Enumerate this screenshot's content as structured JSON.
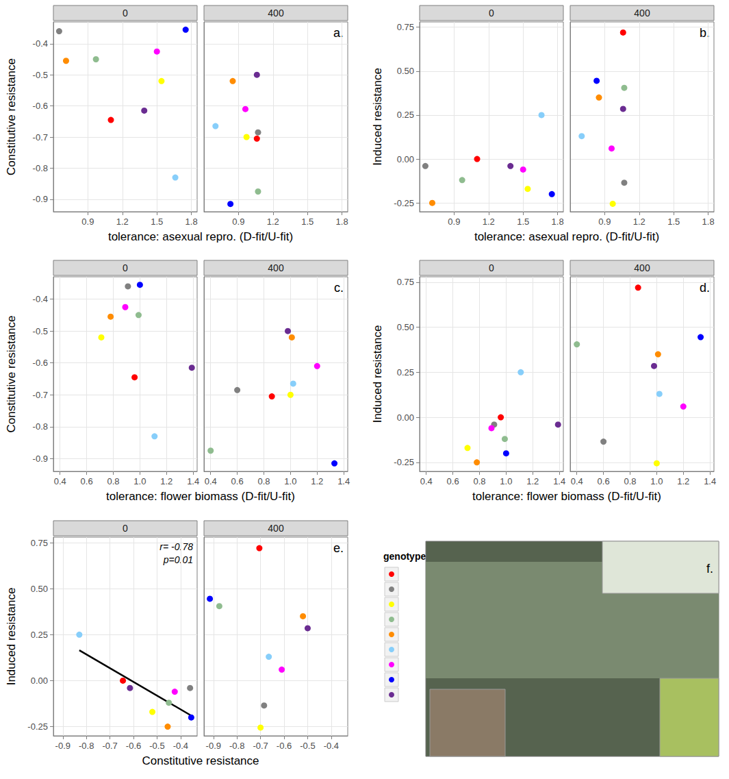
{
  "chart_data": [
    {
      "type": "scatter",
      "label": "a.",
      "x_label": "tolerance: asexual repro. (D-fit/U-fit)",
      "y_label": "Constitutive resistance",
      "xlim": [
        0.6,
        1.85
      ],
      "xticks": [
        0.9,
        1.2,
        1.5,
        1.8
      ],
      "ylim": [
        -0.94,
        -0.33
      ],
      "yticks": [
        -0.9,
        -0.8,
        -0.7,
        -0.6,
        -0.5,
        -0.4
      ],
      "grid": true,
      "marker": "circle",
      "series": [
        {
          "name": "0",
          "colors": [
            "#ff0000",
            "#808080",
            "#ffff00",
            "#8fbc8f",
            "#ff8c00",
            "#87cefa",
            "#ff00ff",
            "#0000ff",
            "#6a2c91"
          ],
          "x": [
            1.1,
            0.65,
            1.54,
            0.97,
            0.71,
            1.66,
            1.5,
            1.75,
            1.39
          ],
          "y": [
            -0.645,
            -0.36,
            -0.52,
            -0.45,
            -0.455,
            -0.83,
            -0.425,
            -0.355,
            -0.615
          ]
        },
        {
          "name": "400",
          "colors": [
            "#ff0000",
            "#808080",
            "#ffff00",
            "#8fbc8f",
            "#ff8c00",
            "#87cefa",
            "#ff00ff",
            "#0000ff",
            "#6a2c91"
          ],
          "x": [
            1.06,
            1.07,
            0.97,
            1.07,
            0.85,
            0.7,
            0.96,
            0.83,
            1.06
          ],
          "y": [
            -0.705,
            -0.685,
            -0.7,
            -0.875,
            -0.52,
            -0.665,
            -0.61,
            -0.915,
            -0.5
          ]
        }
      ]
    },
    {
      "type": "scatter",
      "label": "b.",
      "x_label": "tolerance: asexual repro. (D-fit/U-fit)",
      "y_label": "Induced resistance",
      "xlim": [
        0.6,
        1.85
      ],
      "xticks": [
        0.9,
        1.2,
        1.5,
        1.8
      ],
      "ylim": [
        -0.3,
        0.78
      ],
      "yticks": [
        -0.25,
        {
          "value": 0,
          "label": "0.00"
        },
        0.25,
        {
          "value": 0.5,
          "label": "0.50"
        },
        0.75
      ],
      "grid": true,
      "marker": "circle",
      "series": [
        {
          "name": "0",
          "colors": [
            "#ff0000",
            "#808080",
            "#ffff00",
            "#8fbc8f",
            "#ff8c00",
            "#87cefa",
            "#ff00ff",
            "#0000ff",
            "#6a2c91"
          ],
          "x": [
            1.1,
            0.65,
            1.54,
            0.97,
            0.71,
            1.66,
            1.5,
            1.75,
            1.39
          ],
          "y": [
            0.0,
            -0.04,
            -0.17,
            -0.12,
            -0.25,
            0.25,
            -0.06,
            -0.2,
            -0.04
          ]
        },
        {
          "name": "400",
          "colors": [
            "#ff0000",
            "#808080",
            "#ffff00",
            "#8fbc8f",
            "#ff8c00",
            "#87cefa",
            "#ff00ff",
            "#0000ff",
            "#6a2c91"
          ],
          "x": [
            1.06,
            1.07,
            0.97,
            1.07,
            0.85,
            0.7,
            0.96,
            0.83,
            1.06
          ],
          "y": [
            0.72,
            -0.135,
            -0.255,
            0.405,
            0.35,
            0.13,
            0.06,
            0.445,
            0.285
          ]
        }
      ]
    },
    {
      "type": "scatter",
      "label": "c.",
      "x_label": "tolerance: flower biomass (D-fit/U-fit)",
      "y_label": "Constitutive resistance",
      "xlim": [
        0.35,
        1.43
      ],
      "xticks": [
        0.4,
        0.6,
        0.8,
        {
          "value": 1,
          "label": "1.0"
        },
        1.2,
        1.4
      ],
      "ylim": [
        -0.94,
        -0.33
      ],
      "yticks": [
        -0.9,
        -0.8,
        -0.7,
        -0.6,
        -0.5,
        -0.4
      ],
      "grid": true,
      "marker": "circle",
      "series": [
        {
          "name": "0",
          "colors": [
            "#ff0000",
            "#808080",
            "#ffff00",
            "#8fbc8f",
            "#ff8c00",
            "#87cefa",
            "#ff00ff",
            "#0000ff",
            "#6a2c91"
          ],
          "x": [
            0.96,
            0.91,
            0.71,
            0.99,
            0.78,
            1.11,
            0.89,
            1.0,
            1.39
          ],
          "y": [
            -0.645,
            -0.36,
            -0.52,
            -0.45,
            -0.455,
            -0.83,
            -0.425,
            -0.355,
            -0.615
          ]
        },
        {
          "name": "400",
          "colors": [
            "#ff0000",
            "#808080",
            "#ffff00",
            "#8fbc8f",
            "#ff8c00",
            "#87cefa",
            "#ff00ff",
            "#0000ff",
            "#6a2c91"
          ],
          "x": [
            0.86,
            0.6,
            1.0,
            0.4,
            1.01,
            1.02,
            1.2,
            1.33,
            0.98
          ],
          "y": [
            -0.705,
            -0.685,
            -0.7,
            -0.875,
            -0.52,
            -0.665,
            -0.61,
            -0.915,
            -0.5
          ]
        }
      ]
    },
    {
      "type": "scatter",
      "label": "d.",
      "x_label": "tolerance: flower biomass (D-fit/U-fit)",
      "y_label": "Induced resistance",
      "xlim": [
        0.35,
        1.43
      ],
      "xticks": [
        0.4,
        0.6,
        0.8,
        {
          "value": 1,
          "label": "1.0"
        },
        1.2,
        1.4
      ],
      "ylim": [
        -0.3,
        0.78
      ],
      "yticks": [
        -0.25,
        {
          "value": 0,
          "label": "0.00"
        },
        0.25,
        {
          "value": 0.5,
          "label": "0.50"
        },
        0.75
      ],
      "grid": true,
      "marker": "circle",
      "series": [
        {
          "name": "0",
          "colors": [
            "#ff0000",
            "#808080",
            "#ffff00",
            "#8fbc8f",
            "#ff8c00",
            "#87cefa",
            "#ff00ff",
            "#0000ff",
            "#6a2c91"
          ],
          "x": [
            0.96,
            0.91,
            0.71,
            0.99,
            0.78,
            1.11,
            0.89,
            1.0,
            1.39
          ],
          "y": [
            0.0,
            -0.04,
            -0.17,
            -0.12,
            -0.25,
            0.25,
            -0.06,
            -0.2,
            -0.04
          ]
        },
        {
          "name": "400",
          "colors": [
            "#ff0000",
            "#808080",
            "#ffff00",
            "#8fbc8f",
            "#ff8c00",
            "#87cefa",
            "#ff00ff",
            "#0000ff",
            "#6a2c91"
          ],
          "x": [
            0.86,
            0.6,
            1.0,
            0.4,
            1.01,
            1.02,
            1.2,
            1.33,
            0.98
          ],
          "y": [
            0.72,
            -0.135,
            -0.255,
            0.405,
            0.35,
            0.13,
            0.06,
            0.445,
            0.285
          ]
        }
      ]
    },
    {
      "type": "scatter",
      "label": "e.",
      "x_label": "Constitutive resistance",
      "y_label": "Induced resistance",
      "xlim": [
        -0.94,
        -0.33
      ],
      "xticks": [
        -0.9,
        -0.8,
        -0.7,
        -0.6,
        -0.5,
        -0.4
      ],
      "ylim": [
        -0.3,
        0.78
      ],
      "yticks": [
        -0.25,
        {
          "value": 0,
          "label": "0.00"
        },
        0.25,
        {
          "value": 0.5,
          "label": "0.50"
        },
        0.75
      ],
      "grid": true,
      "marker": "circle",
      "series": [
        {
          "name": "0",
          "colors": [
            "#ff0000",
            "#808080",
            "#ffff00",
            "#8fbc8f",
            "#ff8c00",
            "#87cefa",
            "#ff00ff",
            "#0000ff",
            "#6a2c91"
          ],
          "x": [
            -0.645,
            -0.36,
            -0.52,
            -0.45,
            -0.455,
            -0.83,
            -0.425,
            -0.355,
            -0.615
          ],
          "y": [
            0.0,
            -0.04,
            -0.17,
            -0.12,
            -0.25,
            0.25,
            -0.06,
            -0.2,
            -0.04
          ],
          "fit": {
            "x": [
              -0.83,
              -0.355
            ],
            "y": [
              0.165,
              -0.19
            ]
          },
          "annotations": [
            "r= -0.78",
            "p=0.01"
          ]
        },
        {
          "name": "400",
          "colors": [
            "#ff0000",
            "#808080",
            "#ffff00",
            "#8fbc8f",
            "#ff8c00",
            "#87cefa",
            "#ff00ff",
            "#0000ff",
            "#6a2c91"
          ],
          "x": [
            -0.705,
            -0.685,
            -0.7,
            -0.875,
            -0.52,
            -0.665,
            -0.61,
            -0.915,
            -0.5
          ],
          "y": [
            0.72,
            -0.135,
            -0.255,
            0.405,
            0.35,
            0.13,
            0.06,
            0.445,
            0.285
          ]
        }
      ]
    }
  ],
  "legend_title": "genotype",
  "legend_colors": [
    "#ff0000",
    "#808080",
    "#ffff00",
    "#8fbc8f",
    "#ff8c00",
    "#87cefa",
    "#ff00ff",
    "#0000ff",
    "#6a2c91"
  ],
  "photo_label": "f."
}
